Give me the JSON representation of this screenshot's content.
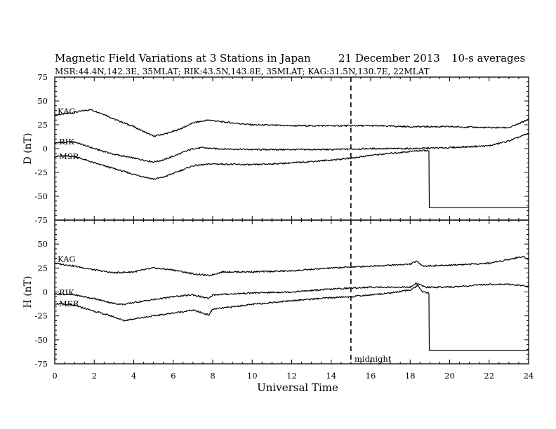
{
  "chart_data": {
    "type": "line",
    "title": "Magnetic Field Variations at 3 Stations in Japan",
    "date": "21 December 2013",
    "averaging": "10-s averages",
    "subtitle": "MSR:44.4N,142.3E, 35MLAT;  RIK:43.5N,143.8E, 35MLAT;  KAG:31.5N,130.7E, 22MLAT",
    "xlabel": "Universal Time",
    "xlim": [
      0,
      24
    ],
    "xticks": [
      "0",
      "2",
      "4",
      "6",
      "8",
      "10",
      "12",
      "14",
      "16",
      "18",
      "20",
      "22",
      "24"
    ],
    "annotation": {
      "x": 15,
      "label": "midnight"
    },
    "panels": [
      {
        "ylabel": "D (nT)",
        "ylim": [
          -75,
          75
        ],
        "yticks": [
          "75",
          "50",
          "25",
          "0",
          "-25",
          "-50",
          "-75"
        ],
        "series": [
          {
            "name": "KAG",
            "x": [
              0,
              1,
              1.8,
              2.5,
              3,
              4,
              5,
              5.5,
              6,
              6.5,
              7,
              7.8,
              8.5,
              10,
              12,
              14,
              16,
              18,
              20,
              22,
              23,
              23.5,
              24
            ],
            "y": [
              35,
              38,
              41,
              36,
              31,
              23,
              13,
              15,
              18,
              22,
              27,
              30,
              28,
              25,
              24,
              24,
              24,
              23,
              23,
              22,
              22,
              26,
              31
            ]
          },
          {
            "name": "RIK",
            "x": [
              0,
              1,
              2,
              3,
              4,
              5,
              5.5,
              6,
              6.5,
              7,
              7.5,
              8,
              10,
              12,
              14,
              16,
              18,
              20,
              22,
              23,
              24
            ],
            "y": [
              6,
              7,
              0,
              -6,
              -10,
              -14,
              -12,
              -8,
              -4,
              0,
              1,
              0,
              -1,
              -1,
              -1,
              0,
              0,
              1,
              3,
              8,
              16
            ]
          },
          {
            "name": "MSR",
            "x": [
              0,
              1,
              2,
              3,
              4,
              5,
              5.5,
              6,
              6.5,
              7,
              8,
              10,
              12,
              14,
              15,
              16,
              17,
              18,
              18.5,
              18.95,
              18.97,
              24
            ],
            "y": [
              -8,
              -8,
              -15,
              -21,
              -27,
              -32,
              -30,
              -26,
              -22,
              -18,
              -16,
              -17,
              -15,
              -12,
              -10,
              -7,
              -5,
              -3,
              -2,
              -2,
              -62,
              -62
            ]
          }
        ]
      },
      {
        "ylabel": "H (nT)",
        "ylim": [
          -75,
          75
        ],
        "yticks": [
          "75",
          "50",
          "25",
          "0",
          "-25",
          "-50",
          "-75"
        ],
        "series": [
          {
            "name": "KAG",
            "x": [
              0,
              1,
              2,
              3,
              4,
              5,
              6,
              7,
              7.8,
              8.5,
              10,
              12,
              14,
              16,
              18,
              18.3,
              18.7,
              20,
              22,
              23,
              23.7,
              24
            ],
            "y": [
              30,
              27,
              23,
              20,
              21,
              25,
              23,
              19,
              17,
              21,
              21,
              22,
              25,
              27,
              29,
              32,
              27,
              28,
              30,
              34,
              37,
              34
            ]
          },
          {
            "name": "RIK",
            "x": [
              0,
              1,
              2,
              3,
              3.5,
              4,
              5,
              6,
              7,
              7.8,
              8,
              10,
              12,
              14,
              16,
              18,
              18.3,
              18.8,
              20,
              22,
              23,
              24
            ],
            "y": [
              -2,
              -3,
              -7,
              -12,
              -13,
              -11,
              -8,
              -5,
              -3,
              -7,
              -3,
              -1,
              0,
              3,
              5,
              5,
              9,
              5,
              5,
              8,
              8,
              6
            ]
          },
          {
            "name": "MSR",
            "x": [
              0,
              1,
              2,
              3,
              3.5,
              4,
              5,
              6,
              7,
              7.8,
              8,
              10,
              12,
              14,
              15,
              16,
              17,
              18,
              18.4,
              18.6,
              18.95,
              18.97,
              24
            ],
            "y": [
              -12,
              -14,
              -20,
              -26,
              -30,
              -28,
              -25,
              -22,
              -19,
              -24,
              -18,
              -13,
              -9,
              -6,
              -5,
              -3,
              -1,
              2,
              7,
              0,
              -1,
              -61,
              -61
            ]
          }
        ]
      }
    ]
  }
}
